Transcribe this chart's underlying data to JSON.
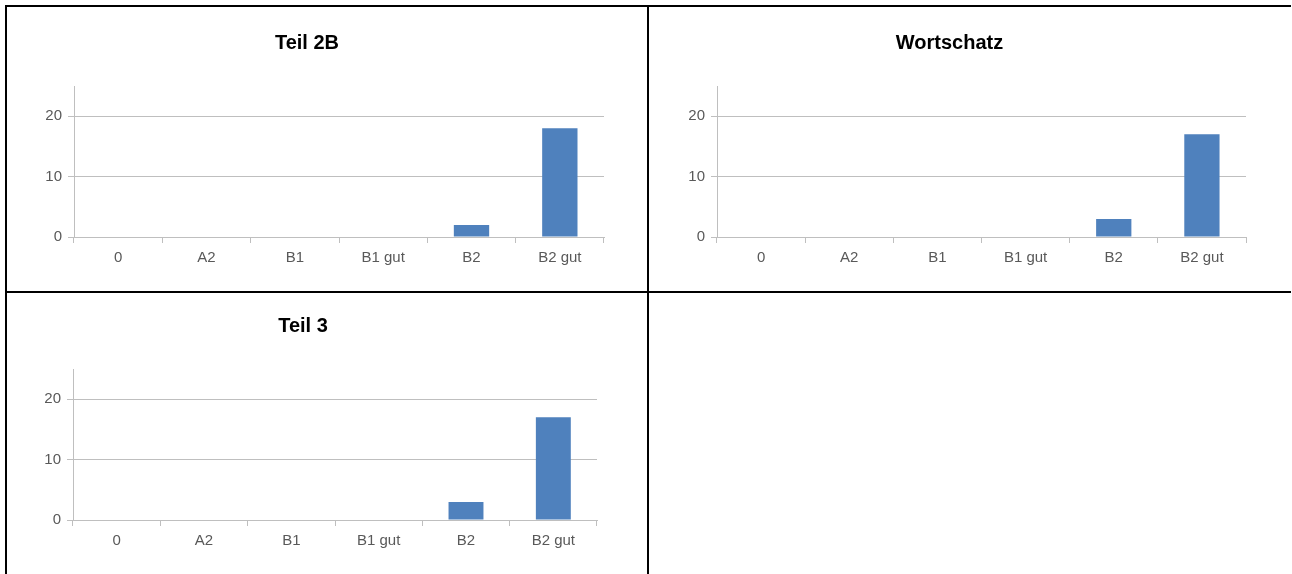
{
  "chart_data": [
    {
      "type": "bar",
      "title": "Teil 2B",
      "categories": [
        "0",
        "A2",
        "B1",
        "B1 gut",
        "B2",
        "B2 gut"
      ],
      "values": [
        0,
        0,
        0,
        0,
        2,
        18
      ],
      "color": "#4f81bd",
      "ylim": [
        0,
        25
      ],
      "yticks": [
        0,
        10,
        20
      ],
      "grid": "y"
    },
    {
      "type": "bar",
      "title": "Wortschatz",
      "categories": [
        "0",
        "A2",
        "B1",
        "B1 gut",
        "B2",
        "B2 gut"
      ],
      "values": [
        0,
        0,
        0,
        0,
        3,
        17
      ],
      "color": "#4f81bd",
      "ylim": [
        0,
        25
      ],
      "yticks": [
        0,
        10,
        20
      ],
      "grid": "y"
    },
    {
      "type": "bar",
      "title": "Teil 3",
      "categories": [
        "0",
        "A2",
        "B1",
        "B1 gut",
        "B2",
        "B2 gut"
      ],
      "values": [
        0,
        0,
        0,
        0,
        3,
        17
      ],
      "color": "#4f81bd",
      "ylim": [
        0,
        25
      ],
      "yticks": [
        0,
        10,
        20
      ],
      "grid": "y"
    }
  ]
}
